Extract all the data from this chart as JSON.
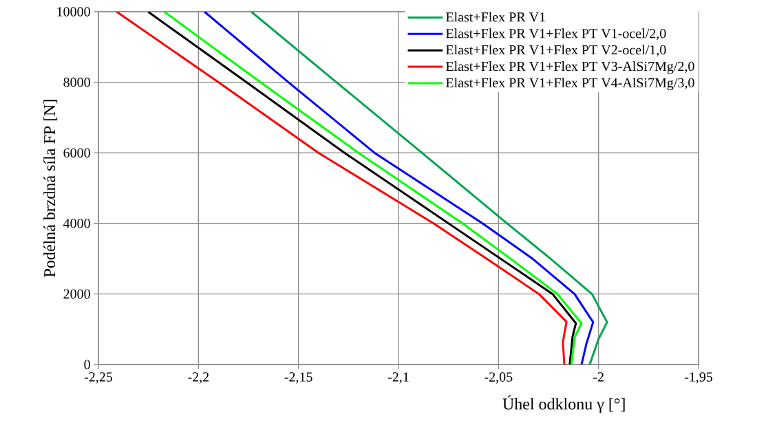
{
  "chart_data": {
    "type": "line",
    "xlabel": "Úhel odklonu γ [°]",
    "ylabel": "Podélná brzdná síla FP [N]",
    "xlim": [
      -2.25,
      -1.95
    ],
    "ylim": [
      0,
      10000
    ],
    "xticks": [
      {
        "value": -2.25,
        "label": "-2,25"
      },
      {
        "value": -2.2,
        "label": "-2,2"
      },
      {
        "value": -2.15,
        "label": "-2,15"
      },
      {
        "value": -2.1,
        "label": "-2,1"
      },
      {
        "value": -2.05,
        "label": "-2,05"
      },
      {
        "value": -2.0,
        "label": "-2"
      },
      {
        "value": -1.95,
        "label": "-1,95"
      }
    ],
    "yticks": [
      0,
      2000,
      4000,
      6000,
      8000,
      10000
    ],
    "grid": true,
    "legend": "top right",
    "series": [
      {
        "name": "Elast+Flex PR V1",
        "color": "#00a650",
        "x": [
          -2.0044,
          -2.0,
          -1.9957,
          -2.0033,
          -2.024,
          -2.0457,
          -2.0883,
          -2.131,
          -2.1736
        ],
        "values": [
          0,
          720,
          1200,
          2000,
          3000,
          4000,
          6000,
          8000,
          10000
        ]
      },
      {
        "name": "Elast+Flex PR V1+Flex PT V1-ocel/2,0",
        "color": "#0000ff",
        "x": [
          -2.0085,
          -2.006,
          -2.0027,
          -2.012,
          -2.033,
          -2.058,
          -2.112,
          -2.155,
          -2.197
        ],
        "values": [
          0,
          600,
          1200,
          2000,
          3000,
          4000,
          6000,
          8000,
          10000
        ]
      },
      {
        "name": "Elast+Flex PR V1+Flex PT V2-ocel/1,0",
        "color": "#000000",
        "x": [
          -2.0144,
          -2.013,
          -2.0113,
          -2.023,
          -2.049,
          -2.075,
          -2.127,
          -2.176,
          -2.2252
        ],
        "values": [
          0,
          780,
          1170,
          2000,
          3000,
          4000,
          6000,
          8000,
          10000
        ]
      },
      {
        "name": "Elast+Flex PR V1+Flex PT V3-AlSi7Mg/2,0",
        "color": "#ff0000",
        "x": [
          -2.0171,
          -2.0178,
          -2.016,
          -2.0298,
          -2.056,
          -2.0825,
          -2.14,
          -2.19,
          -2.2409
        ],
        "values": [
          0,
          640,
          1210,
          2000,
          3000,
          4000,
          6000,
          8000,
          10000
        ]
      },
      {
        "name": "Elast+Flex PR V1+Flex PT V4-AlSi7Mg/3,0",
        "color": "#00ff00",
        "x": [
          -2.0136,
          -2.0119,
          -2.0085,
          -2.0206,
          -2.044,
          -2.068,
          -2.12,
          -2.169,
          -2.2171
        ],
        "values": [
          0,
          780,
          1170,
          2000,
          3000,
          4000,
          6000,
          8000,
          10000
        ]
      }
    ]
  }
}
